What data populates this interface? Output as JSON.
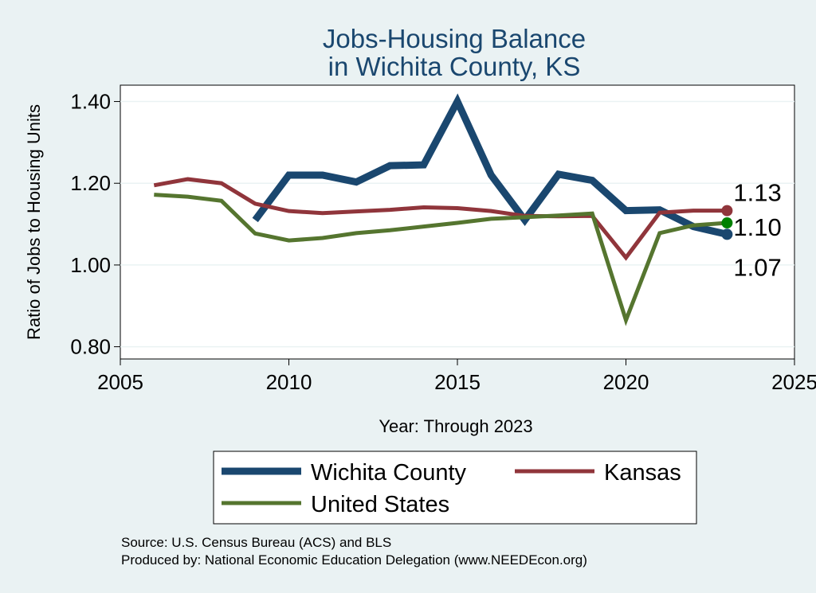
{
  "chart_data": {
    "type": "line",
    "title_lines": [
      "Jobs-Housing Balance",
      "in Wichita County, KS"
    ],
    "xlabel": "Year: Through 2023",
    "ylabel": "Ratio of Jobs to Housing Units",
    "xlim": [
      2005,
      2025
    ],
    "ylim": [
      0.77,
      1.44
    ],
    "x_ticks": [
      "2005",
      "2010",
      "2015",
      "2020",
      "2025"
    ],
    "x_tick_values": [
      2005,
      2010,
      2015,
      2020,
      2025
    ],
    "y_ticks": [
      "0.80",
      "1.00",
      "1.20",
      "1.40"
    ],
    "y_tick_values": [
      0.8,
      1.0,
      1.2,
      1.4
    ],
    "grid": true,
    "series": [
      {
        "name": "Wichita County",
        "color": "#1a476f",
        "end_marker_color": "#1a476f",
        "end_label": "1.07",
        "x": [
          2009,
          2010,
          2011,
          2012,
          2013,
          2014,
          2015,
          2016,
          2017,
          2018,
          2019,
          2020,
          2021,
          2022,
          2023
        ],
        "values": [
          1.11,
          1.22,
          1.22,
          1.203,
          1.243,
          1.245,
          1.4,
          1.22,
          1.11,
          1.222,
          1.207,
          1.133,
          1.135,
          1.094,
          1.075
        ]
      },
      {
        "name": "Kansas",
        "color": "#90353b",
        "end_marker_color": "#90353b",
        "end_label": "1.13",
        "x": [
          2006,
          2007,
          2008,
          2009,
          2010,
          2011,
          2012,
          2013,
          2014,
          2015,
          2016,
          2017,
          2018,
          2019,
          2020,
          2021,
          2022,
          2023
        ],
        "values": [
          1.195,
          1.21,
          1.2,
          1.15,
          1.132,
          1.127,
          1.131,
          1.135,
          1.141,
          1.139,
          1.132,
          1.12,
          1.119,
          1.12,
          1.018,
          1.128,
          1.133,
          1.133
        ]
      },
      {
        "name": "United States",
        "color": "#55752f",
        "end_marker_color": "#008000",
        "end_label": "1.10",
        "x": [
          2006,
          2007,
          2008,
          2009,
          2010,
          2011,
          2012,
          2013,
          2014,
          2015,
          2016,
          2017,
          2018,
          2019,
          2020,
          2021,
          2022,
          2023
        ],
        "values": [
          1.172,
          1.167,
          1.157,
          1.077,
          1.06,
          1.066,
          1.078,
          1.085,
          1.094,
          1.103,
          1.113,
          1.117,
          1.121,
          1.126,
          0.865,
          1.078,
          1.097,
          1.103
        ]
      }
    ],
    "legend": [
      "Wichita County",
      "Kansas",
      "United States"
    ],
    "source_lines": [
      "Source: U.S. Census Bureau (ACS) and BLS",
      "Produced by: National Economic Education Delegation (www.NEEDEcon.org)"
    ]
  }
}
